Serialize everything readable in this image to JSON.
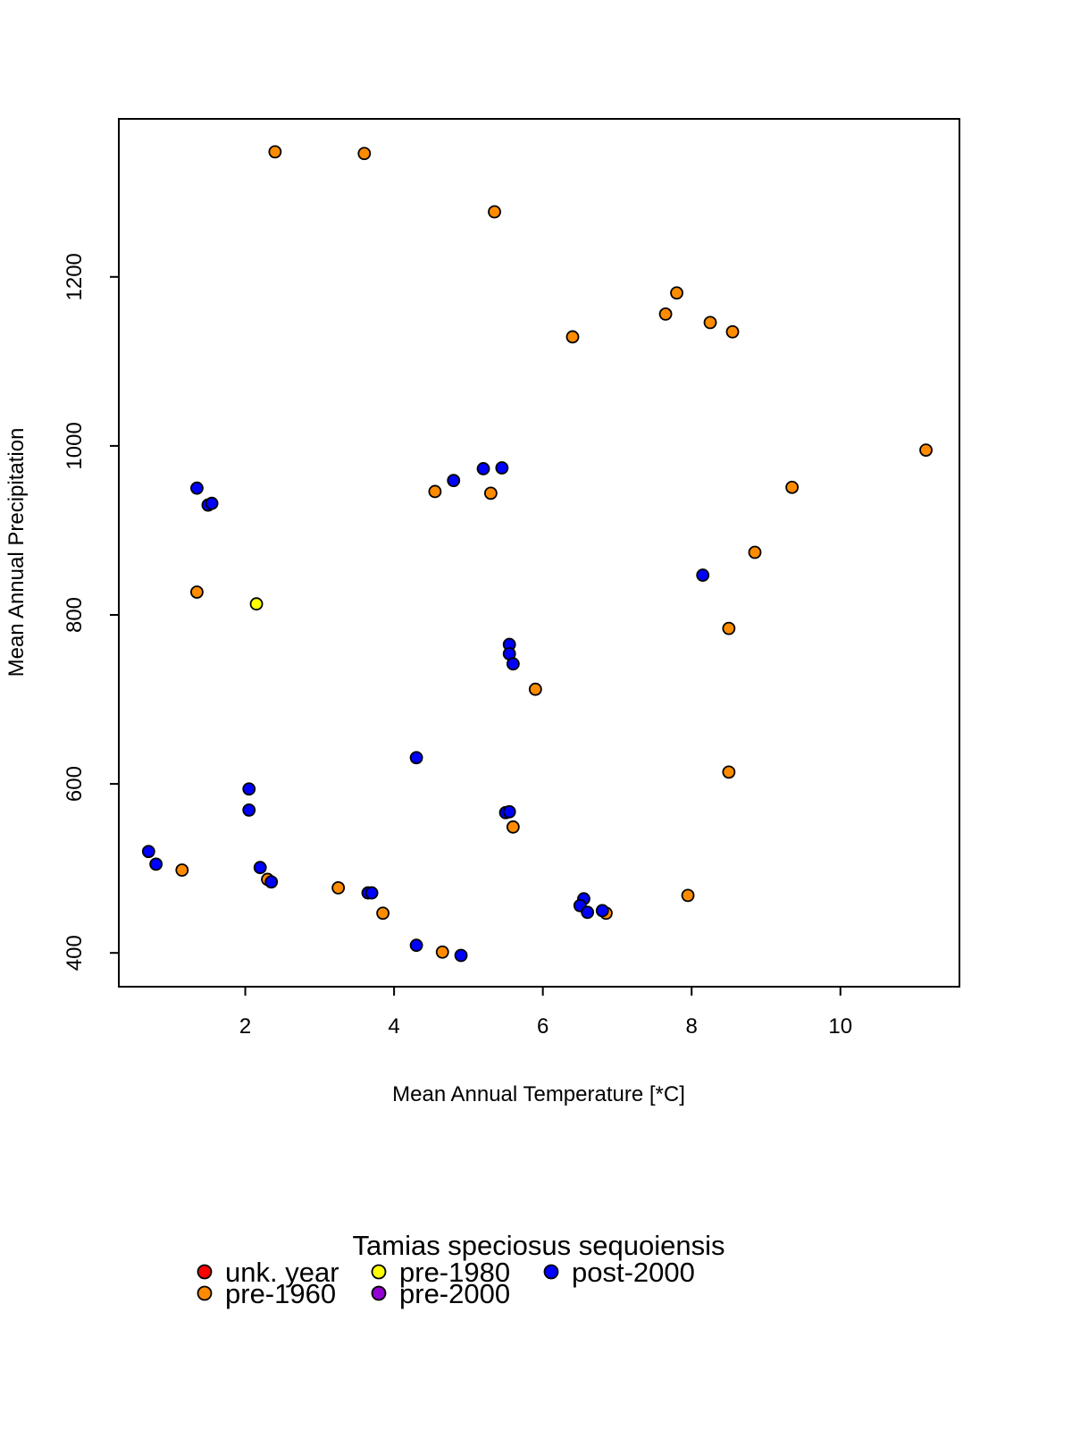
{
  "chart_data": {
    "type": "scatter",
    "title": "",
    "xlabel": "Mean Annual Temperature [*C]",
    "ylabel": "Mean Annual Precipitation",
    "xlim": [
      0.3,
      11.6
    ],
    "ylim": [
      360,
      1387
    ],
    "xticks": [
      2,
      4,
      6,
      8,
      10
    ],
    "yticks": [
      400,
      600,
      800,
      1000,
      1200
    ],
    "grid": false,
    "legend": {
      "title": "Tamias speciosus sequoiensis",
      "placement": "bottom"
    },
    "series": [
      {
        "name": "unk. year",
        "color": "#ff0000",
        "points": []
      },
      {
        "name": "pre-1960",
        "color": "#ff8c00",
        "points": [
          [
            2.4,
            1348
          ],
          [
            3.6,
            1346
          ],
          [
            5.35,
            1277
          ],
          [
            6.4,
            1129
          ],
          [
            7.8,
            1181
          ],
          [
            7.65,
            1156
          ],
          [
            8.25,
            1146
          ],
          [
            8.55,
            1135
          ],
          [
            11.15,
            995
          ],
          [
            9.35,
            951
          ],
          [
            4.55,
            946
          ],
          [
            5.3,
            944
          ],
          [
            8.85,
            874
          ],
          [
            1.35,
            827
          ],
          [
            8.5,
            784
          ],
          [
            5.9,
            712
          ],
          [
            8.5,
            614
          ],
          [
            5.6,
            549
          ],
          [
            1.15,
            498
          ],
          [
            2.3,
            487
          ],
          [
            3.25,
            477
          ],
          [
            3.85,
            447
          ],
          [
            4.65,
            401
          ],
          [
            6.85,
            447
          ],
          [
            7.95,
            468
          ]
        ]
      },
      {
        "name": "pre-1980",
        "color": "#ffff00",
        "points": [
          [
            2.15,
            813
          ]
        ]
      },
      {
        "name": "pre-2000",
        "color": "#9400d3",
        "points": []
      },
      {
        "name": "post-2000",
        "color": "#0000ff",
        "points": [
          [
            1.35,
            950
          ],
          [
            1.5,
            930
          ],
          [
            1.55,
            932
          ],
          [
            4.8,
            959
          ],
          [
            5.2,
            973
          ],
          [
            5.45,
            974
          ],
          [
            8.15,
            847
          ],
          [
            5.55,
            765
          ],
          [
            5.55,
            754
          ],
          [
            5.6,
            742
          ],
          [
            4.3,
            631
          ],
          [
            2.05,
            594
          ],
          [
            2.05,
            569
          ],
          [
            5.5,
            566
          ],
          [
            5.55,
            567
          ],
          [
            0.7,
            520
          ],
          [
            0.8,
            505
          ],
          [
            2.2,
            501
          ],
          [
            2.35,
            484
          ],
          [
            3.65,
            471
          ],
          [
            3.7,
            471
          ],
          [
            4.3,
            409
          ],
          [
            4.9,
            397
          ],
          [
            6.55,
            464
          ],
          [
            6.5,
            456
          ],
          [
            6.6,
            448
          ],
          [
            6.8,
            450
          ]
        ]
      }
    ]
  }
}
